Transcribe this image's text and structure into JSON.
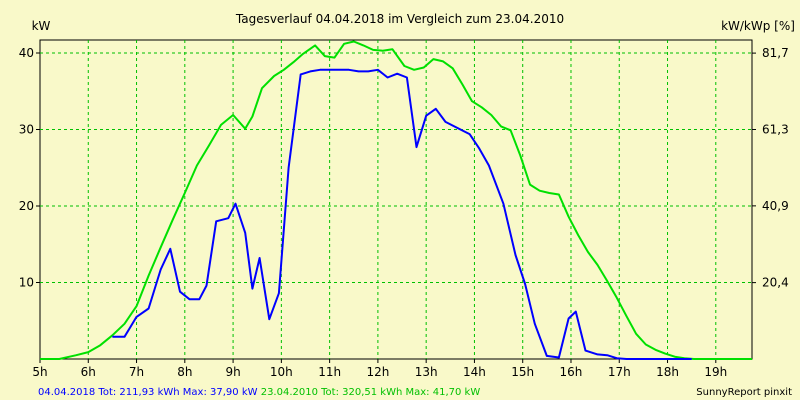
{
  "chart_data": {
    "type": "line",
    "title": "Tagesverlauf 04.04.2018 im Vergleich zum 23.04.2010",
    "ylabel_left": "kW",
    "ylabel_right": "kW/kWp [%]",
    "xlim": [
      5,
      19.75
    ],
    "ylim": [
      0,
      41.7
    ],
    "x_ticks": [
      5,
      6,
      7,
      8,
      9,
      10,
      11,
      12,
      13,
      14,
      15,
      16,
      17,
      18,
      19
    ],
    "x_tick_labels": [
      "5h",
      "6h",
      "7h",
      "8h",
      "9h",
      "10h",
      "11h",
      "12h",
      "13h",
      "14h",
      "15h",
      "16h",
      "17h",
      "18h",
      "19h"
    ],
    "y_ticks": [
      10,
      20,
      30,
      40
    ],
    "y_tick_labels": [
      "10",
      "20",
      "30",
      "40"
    ],
    "y2_ticks": [
      20.4,
      40.9,
      61.3,
      81.7
    ],
    "y2_tick_labels": [
      "20,4",
      "40,9",
      "61,3",
      "81,7"
    ],
    "y2lim": [
      0,
      85.2
    ],
    "grid": true,
    "colors": {
      "series_2018": "#0000ff",
      "series_2010": "#00e000",
      "grid": "#00c000",
      "background": "#f9f9c9"
    },
    "series": [
      {
        "name": "04.04.2018",
        "color": "#0000ff",
        "x": [
          6.5,
          6.75,
          7.0,
          7.25,
          7.5,
          7.7,
          7.9,
          8.1,
          8.3,
          8.45,
          8.65,
          8.9,
          9.05,
          9.25,
          9.4,
          9.55,
          9.75,
          9.95,
          10.15,
          10.4,
          10.6,
          10.8,
          11.0,
          11.2,
          11.4,
          11.6,
          11.8,
          12.0,
          12.2,
          12.4,
          12.6,
          12.8,
          13.0,
          13.2,
          13.4,
          13.65,
          13.9,
          14.1,
          14.3,
          14.6,
          14.85,
          15.05,
          15.25,
          15.5,
          15.75,
          15.95,
          16.1,
          16.3,
          16.55,
          16.75,
          16.95,
          17.15,
          17.3,
          17.5,
          17.75,
          18.0,
          18.25,
          18.5
        ],
        "values": [
          2.9,
          2.9,
          5.5,
          6.6,
          11.7,
          14.4,
          8.8,
          7.8,
          7.8,
          9.6,
          18.0,
          18.4,
          20.3,
          16.5,
          9.2,
          13.2,
          5.2,
          8.6,
          25.0,
          37.2,
          37.6,
          37.8,
          37.8,
          37.8,
          37.8,
          37.6,
          37.6,
          37.8,
          36.8,
          37.3,
          36.8,
          27.7,
          31.8,
          32.7,
          31.0,
          30.2,
          29.4,
          27.5,
          25.3,
          20.3,
          13.6,
          9.8,
          4.6,
          0.4,
          0.2,
          5.3,
          6.2,
          1.1,
          0.6,
          0.5,
          0.1,
          0,
          0,
          0,
          0,
          0,
          0,
          0
        ]
      },
      {
        "name": "23.04.2010",
        "color": "#00e000",
        "x": [
          5.0,
          5.4,
          5.75,
          6.0,
          6.25,
          6.5,
          6.75,
          7.0,
          7.25,
          7.5,
          7.75,
          8.0,
          8.25,
          8.5,
          8.75,
          9.0,
          9.25,
          9.4,
          9.6,
          9.85,
          10.05,
          10.25,
          10.45,
          10.7,
          10.9,
          11.1,
          11.3,
          11.5,
          11.7,
          11.9,
          12.1,
          12.3,
          12.55,
          12.75,
          12.95,
          13.15,
          13.35,
          13.55,
          13.75,
          13.95,
          14.15,
          14.35,
          14.55,
          14.75,
          14.95,
          15.15,
          15.35,
          15.55,
          15.75,
          15.95,
          16.15,
          16.35,
          16.55,
          16.75,
          16.95,
          17.15,
          17.35,
          17.55,
          17.75,
          17.95,
          18.15,
          18.35,
          18.55,
          18.75,
          19.0,
          19.25,
          19.5,
          19.75
        ],
        "values": [
          0,
          0,
          0.5,
          0.9,
          1.8,
          3.1,
          4.6,
          6.9,
          10.9,
          14.6,
          18.2,
          21.7,
          25.3,
          27.9,
          30.6,
          31.9,
          30.1,
          31.7,
          35.4,
          37.0,
          37.8,
          38.8,
          39.9,
          41.0,
          39.6,
          39.4,
          41.2,
          41.5,
          41.0,
          40.4,
          40.3,
          40.5,
          38.3,
          37.8,
          38.1,
          39.2,
          38.9,
          38.0,
          35.9,
          33.7,
          32.9,
          31.9,
          30.4,
          29.9,
          26.6,
          22.8,
          22.0,
          21.7,
          21.5,
          18.6,
          16.2,
          14.0,
          12.3,
          10.2,
          8.0,
          5.6,
          3.3,
          1.9,
          1.2,
          0.7,
          0.3,
          0.1,
          0,
          0,
          0,
          0,
          0,
          0
        ]
      }
    ]
  },
  "footer": {
    "series1_text": "04.04.2018 Tot: 211,93 kWh Max: 37,90 kW",
    "series2_text": "23.04.2010 Tot: 320,51 kWh Max: 41,70 kW",
    "brand": "SunnyReport pinxit"
  }
}
